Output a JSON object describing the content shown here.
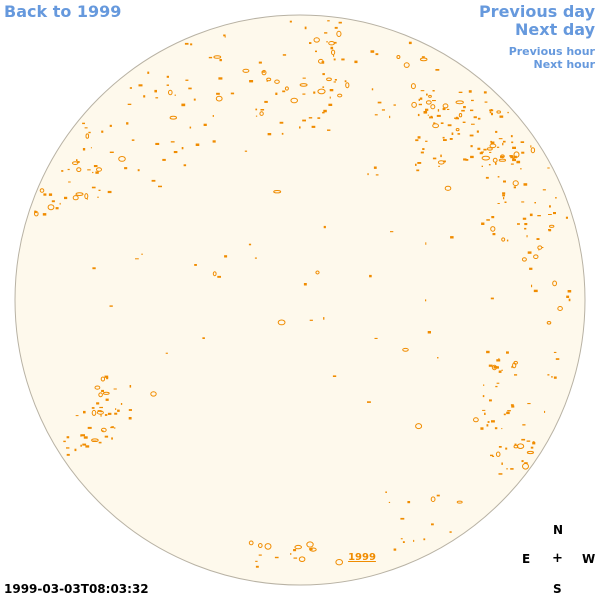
{
  "nav": {
    "back_label": "Back to 1999",
    "prev_day": "Previous day",
    "next_day": "Next day",
    "prev_hour": "Previous hour",
    "next_hour": "Next hour"
  },
  "disk": {
    "year_label": "1999",
    "fill_color": "#fef9ec",
    "edge_color": "#b8b2a4",
    "contour_color": "#f08c00"
  },
  "timestamp": "1999-03-03T08:03:32",
  "compass": {
    "n": "N",
    "e": "E",
    "center": "+",
    "w": "W",
    "s": "S"
  }
}
